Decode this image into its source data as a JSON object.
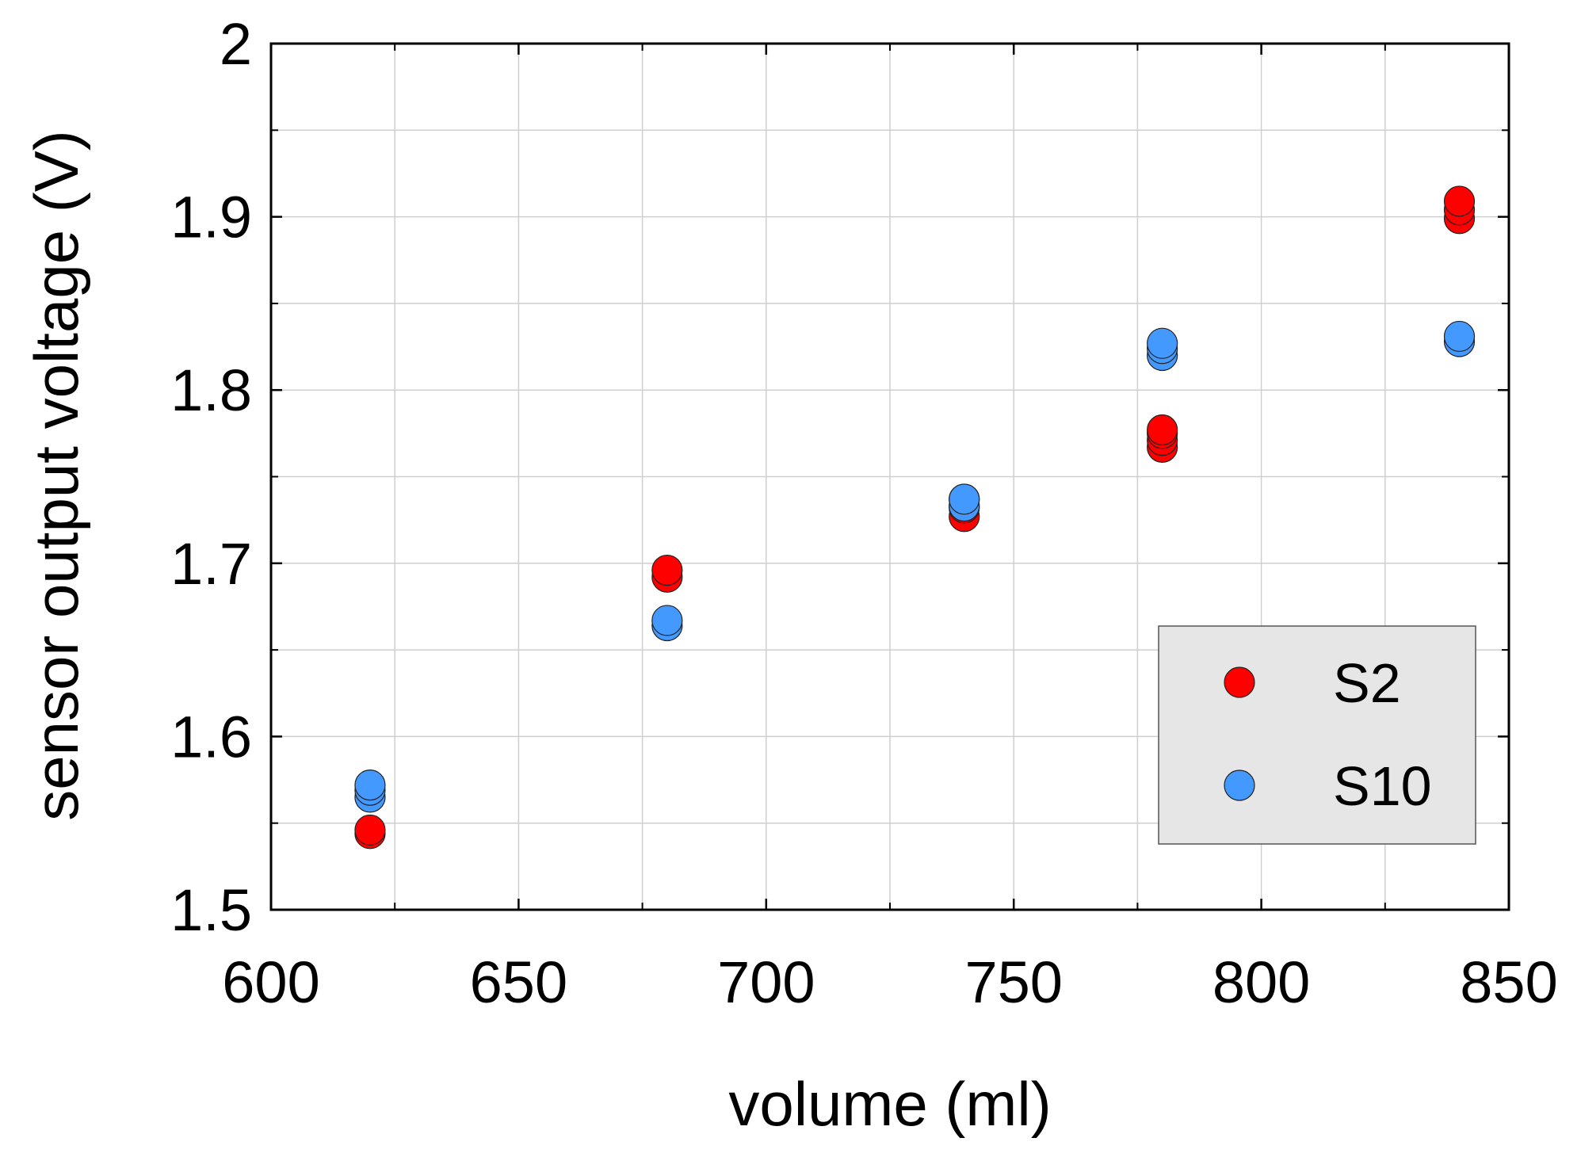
{
  "chart_data": {
    "type": "scatter",
    "title": "",
    "xlabel": "volume (ml)",
    "ylabel": "sensor output voltage (V)",
    "xlim": [
      600,
      850
    ],
    "ylim": [
      1.5,
      2.0
    ],
    "x_ticks": [
      600,
      650,
      700,
      750,
      800,
      850
    ],
    "x_tick_labels": [
      "600",
      "650",
      "700",
      "750",
      "800",
      "850"
    ],
    "x_minor_ticks": [
      625,
      675,
      725,
      775,
      825
    ],
    "y_ticks": [
      1.5,
      1.6,
      1.7,
      1.8,
      1.9,
      2.0
    ],
    "y_tick_labels": [
      "1.5",
      "1.6",
      "1.7",
      "1.8",
      "1.9",
      "2"
    ],
    "y_minor_ticks": [
      1.55,
      1.65,
      1.75,
      1.85,
      1.95
    ],
    "grid": true,
    "legend_position": "bottom-right",
    "series": [
      {
        "name": "S2",
        "color": "#ff0000",
        "x": [
          620,
          620,
          680,
          680,
          740,
          740,
          740,
          780,
          780,
          780,
          780,
          840,
          840,
          840
        ],
        "y": [
          1.544,
          1.546,
          1.692,
          1.696,
          1.727,
          1.732,
          1.737,
          1.767,
          1.771,
          1.775,
          1.777,
          1.899,
          1.904,
          1.909
        ]
      },
      {
        "name": "S10",
        "color": "#4499ff",
        "x": [
          620,
          620,
          620,
          680,
          680,
          740,
          740,
          780,
          780,
          780,
          840,
          840
        ],
        "y": [
          1.565,
          1.569,
          1.572,
          1.664,
          1.667,
          1.733,
          1.737,
          1.82,
          1.824,
          1.827,
          1.828,
          1.831
        ]
      }
    ]
  }
}
